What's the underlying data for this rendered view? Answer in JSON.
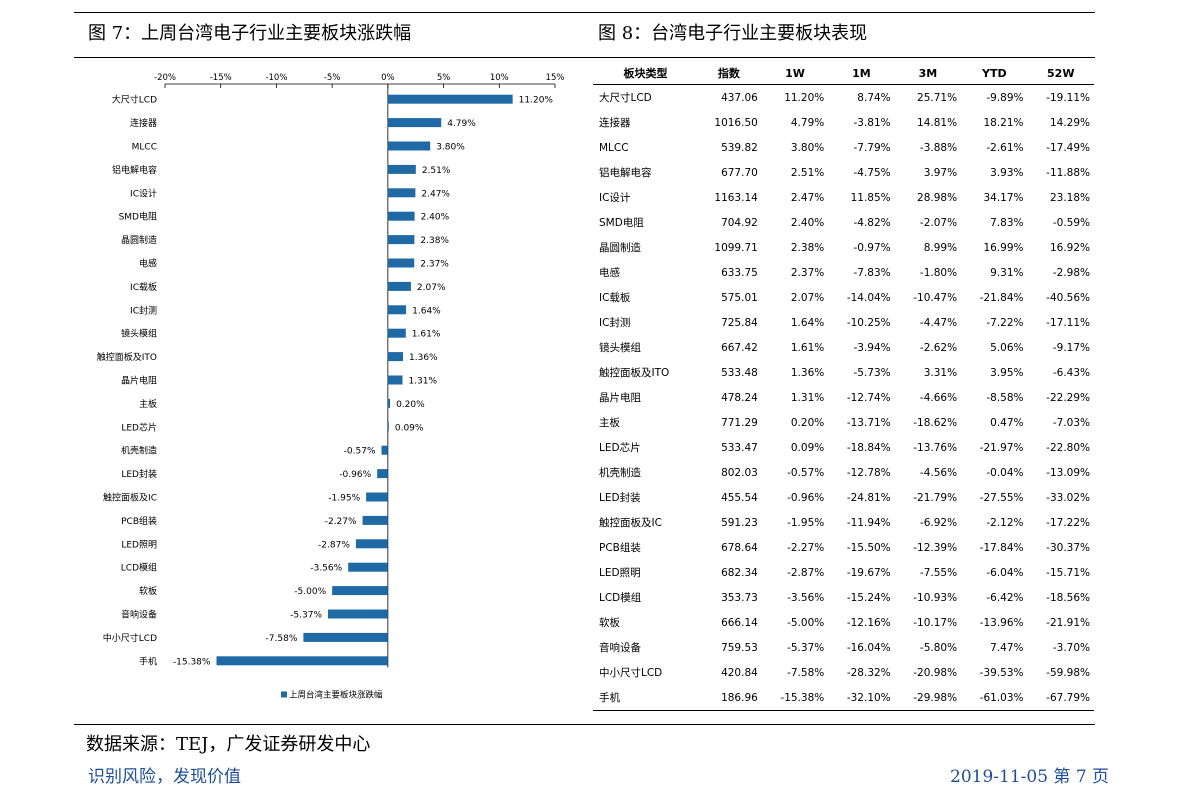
{
  "figure7": {
    "title": "图 7：上周台湾电子行业主要板块涨跌幅"
  },
  "figure8": {
    "title": "图 8：台湾电子行业主要板块表现"
  },
  "chart_data": {
    "type": "bar",
    "orientation": "horizontal",
    "title": "",
    "xlabel": "",
    "ylabel": "",
    "xlim": [
      -20,
      15
    ],
    "x_ticks": [
      "-20%",
      "-15%",
      "-10%",
      "-5%",
      "0%",
      "5%",
      "10%",
      "15%"
    ],
    "tick_values": [
      -20,
      -15,
      -10,
      -5,
      0,
      5,
      10,
      15
    ],
    "grid": false,
    "legend_position": "bottom",
    "bar_color": "#1f6aa5",
    "categories": [
      "大尺寸LCD",
      "连接器",
      "MLCC",
      "铝电解电容",
      "IC设计",
      "SMD电阻",
      "晶圆制造",
      "电感",
      "IC载板",
      "IC封测",
      "镜头模组",
      "触控面板及ITO",
      "晶片电阻",
      "主板",
      "LED芯片",
      "机壳制造",
      "LED封装",
      "触控面板及IC",
      "PCB组装",
      "LED照明",
      "LCD模组",
      "软板",
      "音响设备",
      "中小尺寸LCD",
      "手机"
    ],
    "series": [
      {
        "name": "上周台湾主要板块涨跌幅",
        "values": [
          11.2,
          4.79,
          3.8,
          2.51,
          2.47,
          2.4,
          2.38,
          2.37,
          2.07,
          1.64,
          1.61,
          1.36,
          1.31,
          0.2,
          0.09,
          -0.57,
          -0.96,
          -1.95,
          -2.27,
          -2.87,
          -3.56,
          -5.0,
          -5.37,
          -7.58,
          -15.38
        ],
        "labels": [
          "11.20%",
          "4.79%",
          "3.80%",
          "2.51%",
          "2.47%",
          "2.40%",
          "2.38%",
          "2.37%",
          "2.07%",
          "1.64%",
          "1.61%",
          "1.36%",
          "1.31%",
          "0.20%",
          "0.09%",
          "-0.57%",
          "-0.96%",
          "-1.95%",
          "-2.27%",
          "-2.87%",
          "-3.56%",
          "-5.00%",
          "-5.37%",
          "-7.58%",
          "-15.38%"
        ]
      }
    ]
  },
  "table": {
    "headers": [
      "板块类型",
      "指数",
      "1W",
      "1M",
      "3M",
      "YTD",
      "52W"
    ],
    "rows": [
      [
        "大尺寸LCD",
        "437.06",
        "11.20%",
        "8.74%",
        "25.71%",
        "-9.89%",
        "-19.11%"
      ],
      [
        "连接器",
        "1016.50",
        "4.79%",
        "-3.81%",
        "14.81%",
        "18.21%",
        "14.29%"
      ],
      [
        "MLCC",
        "539.82",
        "3.80%",
        "-7.79%",
        "-3.88%",
        "-2.61%",
        "-17.49%"
      ],
      [
        "铝电解电容",
        "677.70",
        "2.51%",
        "-4.75%",
        "3.97%",
        "3.93%",
        "-11.88%"
      ],
      [
        "IC设计",
        "1163.14",
        "2.47%",
        "11.85%",
        "28.98%",
        "34.17%",
        "23.18%"
      ],
      [
        "SMD电阻",
        "704.92",
        "2.40%",
        "-4.82%",
        "-2.07%",
        "7.83%",
        "-0.59%"
      ],
      [
        "晶圆制造",
        "1099.71",
        "2.38%",
        "-0.97%",
        "8.99%",
        "16.99%",
        "16.92%"
      ],
      [
        "电感",
        "633.75",
        "2.37%",
        "-7.83%",
        "-1.80%",
        "9.31%",
        "-2.98%"
      ],
      [
        "IC载板",
        "575.01",
        "2.07%",
        "-14.04%",
        "-10.47%",
        "-21.84%",
        "-40.56%"
      ],
      [
        "IC封测",
        "725.84",
        "1.64%",
        "-10.25%",
        "-4.47%",
        "-7.22%",
        "-17.11%"
      ],
      [
        "镜头模组",
        "667.42",
        "1.61%",
        "-3.94%",
        "-2.62%",
        "5.06%",
        "-9.17%"
      ],
      [
        "触控面板及ITO",
        "533.48",
        "1.36%",
        "-5.73%",
        "3.31%",
        "3.95%",
        "-6.43%"
      ],
      [
        "晶片电阻",
        "478.24",
        "1.31%",
        "-12.74%",
        "-4.66%",
        "-8.58%",
        "-22.29%"
      ],
      [
        "主板",
        "771.29",
        "0.20%",
        "-13.71%",
        "-18.62%",
        "0.47%",
        "-7.03%"
      ],
      [
        "LED芯片",
        "533.47",
        "0.09%",
        "-18.84%",
        "-13.76%",
        "-21.97%",
        "-22.80%"
      ],
      [
        "机壳制造",
        "802.03",
        "-0.57%",
        "-12.78%",
        "-4.56%",
        "-0.04%",
        "-13.09%"
      ],
      [
        "LED封装",
        "455.54",
        "-0.96%",
        "-24.81%",
        "-21.79%",
        "-27.55%",
        "-33.02%"
      ],
      [
        "触控面板及IC",
        "591.23",
        "-1.95%",
        "-11.94%",
        "-6.92%",
        "-2.12%",
        "-17.22%"
      ],
      [
        "PCB组装",
        "678.64",
        "-2.27%",
        "-15.50%",
        "-12.39%",
        "-17.84%",
        "-30.37%"
      ],
      [
        "LED照明",
        "682.34",
        "-2.87%",
        "-19.67%",
        "-7.55%",
        "-6.04%",
        "-15.71%"
      ],
      [
        "LCD模组",
        "353.73",
        "-3.56%",
        "-15.24%",
        "-10.93%",
        "-6.42%",
        "-18.56%"
      ],
      [
        "软板",
        "666.14",
        "-5.00%",
        "-12.16%",
        "-10.17%",
        "-13.96%",
        "-21.91%"
      ],
      [
        "音响设备",
        "759.53",
        "-5.37%",
        "-16.04%",
        "-5.80%",
        "7.47%",
        "-3.70%"
      ],
      [
        "中小尺寸LCD",
        "420.84",
        "-7.58%",
        "-28.32%",
        "-20.98%",
        "-39.53%",
        "-59.98%"
      ],
      [
        "手机",
        "186.96",
        "-15.38%",
        "-32.10%",
        "-29.98%",
        "-61.03%",
        "-67.79%"
      ]
    ]
  },
  "source": "数据来源：TEJ，广发证券研发中心",
  "footer": {
    "left": "识别风险，发现价值",
    "right": "2019-11-05  第 7 页"
  }
}
